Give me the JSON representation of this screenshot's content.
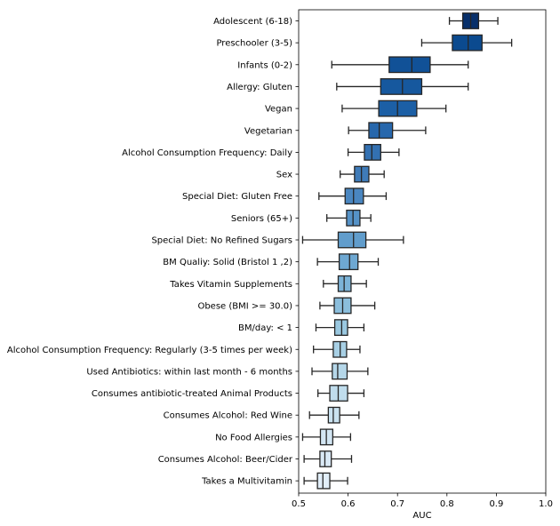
{
  "chart_data": {
    "type": "box",
    "orientation": "horizontal",
    "title": "",
    "xlabel": "AUC",
    "ylabel": "",
    "xlim": [
      0.5,
      1.0
    ],
    "xticks": [
      0.5,
      0.6,
      0.7,
      0.8,
      0.9,
      1.0
    ],
    "xtick_labels": [
      "0.5",
      "0.6",
      "0.7",
      "0.8",
      "0.9",
      "1.0"
    ],
    "grid": false,
    "categories": [
      {
        "label": "Adolescent (6-18)",
        "whislo": 0.805,
        "q1": 0.832,
        "median": 0.848,
        "q3": 0.864,
        "whishi": 0.903,
        "color": "#08306b"
      },
      {
        "label": "Preschooler (3-5)",
        "whislo": 0.749,
        "q1": 0.811,
        "median": 0.843,
        "q3": 0.871,
        "whishi": 0.931,
        "color": "#0b4a8f"
      },
      {
        "label": "Infants (0-2)",
        "whislo": 0.567,
        "q1": 0.683,
        "median": 0.729,
        "q3": 0.766,
        "whishi": 0.843,
        "color": "#115197"
      },
      {
        "label": "Allergy: Gluten",
        "whislo": 0.577,
        "q1": 0.666,
        "median": 0.71,
        "q3": 0.749,
        "whishi": 0.843,
        "color": "#16589e"
      },
      {
        "label": "Vegan",
        "whislo": 0.588,
        "q1": 0.662,
        "median": 0.7,
        "q3": 0.739,
        "whishi": 0.798,
        "color": "#1c5fa5"
      },
      {
        "label": "Vegetarian",
        "whislo": 0.601,
        "q1": 0.642,
        "median": 0.663,
        "q3": 0.69,
        "whishi": 0.757,
        "color": "#2767ac"
      },
      {
        "label": "Alcohol Consumption Frequency: Daily",
        "whislo": 0.6,
        "q1": 0.633,
        "median": 0.648,
        "q3": 0.666,
        "whishi": 0.703,
        "color": "#3371b2"
      },
      {
        "label": "Sex",
        "whislo": 0.584,
        "q1": 0.613,
        "median": 0.627,
        "q3": 0.642,
        "whishi": 0.673,
        "color": "#3f7bb8"
      },
      {
        "label": "Special Diet: Gluten Free ",
        "whislo": 0.541,
        "q1": 0.594,
        "median": 0.611,
        "q3": 0.631,
        "whishi": 0.677,
        "color": "#4a86c0"
      },
      {
        "label": "Seniors (65+)",
        "whislo": 0.557,
        "q1": 0.597,
        "median": 0.61,
        "q3": 0.624,
        "whishi": 0.646,
        "color": "#5592c7"
      },
      {
        "label": "Special Diet: No Refined Sugars",
        "whislo": 0.508,
        "q1": 0.58,
        "median": 0.611,
        "q3": 0.636,
        "whishi": 0.712,
        "color": "#619dcc"
      },
      {
        "label": "BM Qualiy: Solid (Bristol 1 ,2)",
        "whislo": 0.538,
        "q1": 0.582,
        "median": 0.603,
        "q3": 0.62,
        "whishi": 0.661,
        "color": "#6ea8d2"
      },
      {
        "label": "Takes Vitamin Supplements",
        "whislo": 0.55,
        "q1": 0.58,
        "median": 0.592,
        "q3": 0.606,
        "whishi": 0.637,
        "color": "#7cb3d7"
      },
      {
        "label": "Obese (BMI >= 30.0)",
        "whislo": 0.543,
        "q1": 0.572,
        "median": 0.589,
        "q3": 0.606,
        "whishi": 0.654,
        "color": "#8bbedc"
      },
      {
        "label": "BM/day: < 1",
        "whislo": 0.535,
        "q1": 0.573,
        "median": 0.587,
        "q3": 0.599,
        "whishi": 0.632,
        "color": "#9ac8e0"
      },
      {
        "label": "Alcohol Consumption Frequency: Regularly (3-5 times per week)",
        "whislo": 0.53,
        "q1": 0.57,
        "median": 0.584,
        "q3": 0.597,
        "whishi": 0.624,
        "color": "#a8d0e5"
      },
      {
        "label": "Used Antibiotics: within last month - 6 months",
        "whislo": 0.527,
        "q1": 0.568,
        "median": 0.579,
        "q3": 0.598,
        "whishi": 0.64,
        "color": "#b5d7e9"
      },
      {
        "label": "Consumes antibiotic-treated Animal Products",
        "whislo": 0.539,
        "q1": 0.563,
        "median": 0.58,
        "q3": 0.599,
        "whishi": 0.632,
        "color": "#c0dded"
      },
      {
        "label": "Consumes Alcohol: Red Wine",
        "whislo": 0.522,
        "q1": 0.56,
        "median": 0.57,
        "q3": 0.583,
        "whishi": 0.622,
        "color": "#cae2f0"
      },
      {
        "label": "No Food Allergies",
        "whislo": 0.508,
        "q1": 0.544,
        "median": 0.556,
        "q3": 0.569,
        "whishi": 0.605,
        "color": "#d3e6f3"
      },
      {
        "label": "Consumes Alcohol: Beer/Cider",
        "whislo": 0.511,
        "q1": 0.543,
        "median": 0.553,
        "q3": 0.566,
        "whishi": 0.607,
        "color": "#dae9f6"
      },
      {
        "label": "Takes a Multivitamin",
        "whislo": 0.511,
        "q1": 0.538,
        "median": 0.549,
        "q3": 0.563,
        "whishi": 0.599,
        "color": "#e1eef9"
      }
    ]
  }
}
